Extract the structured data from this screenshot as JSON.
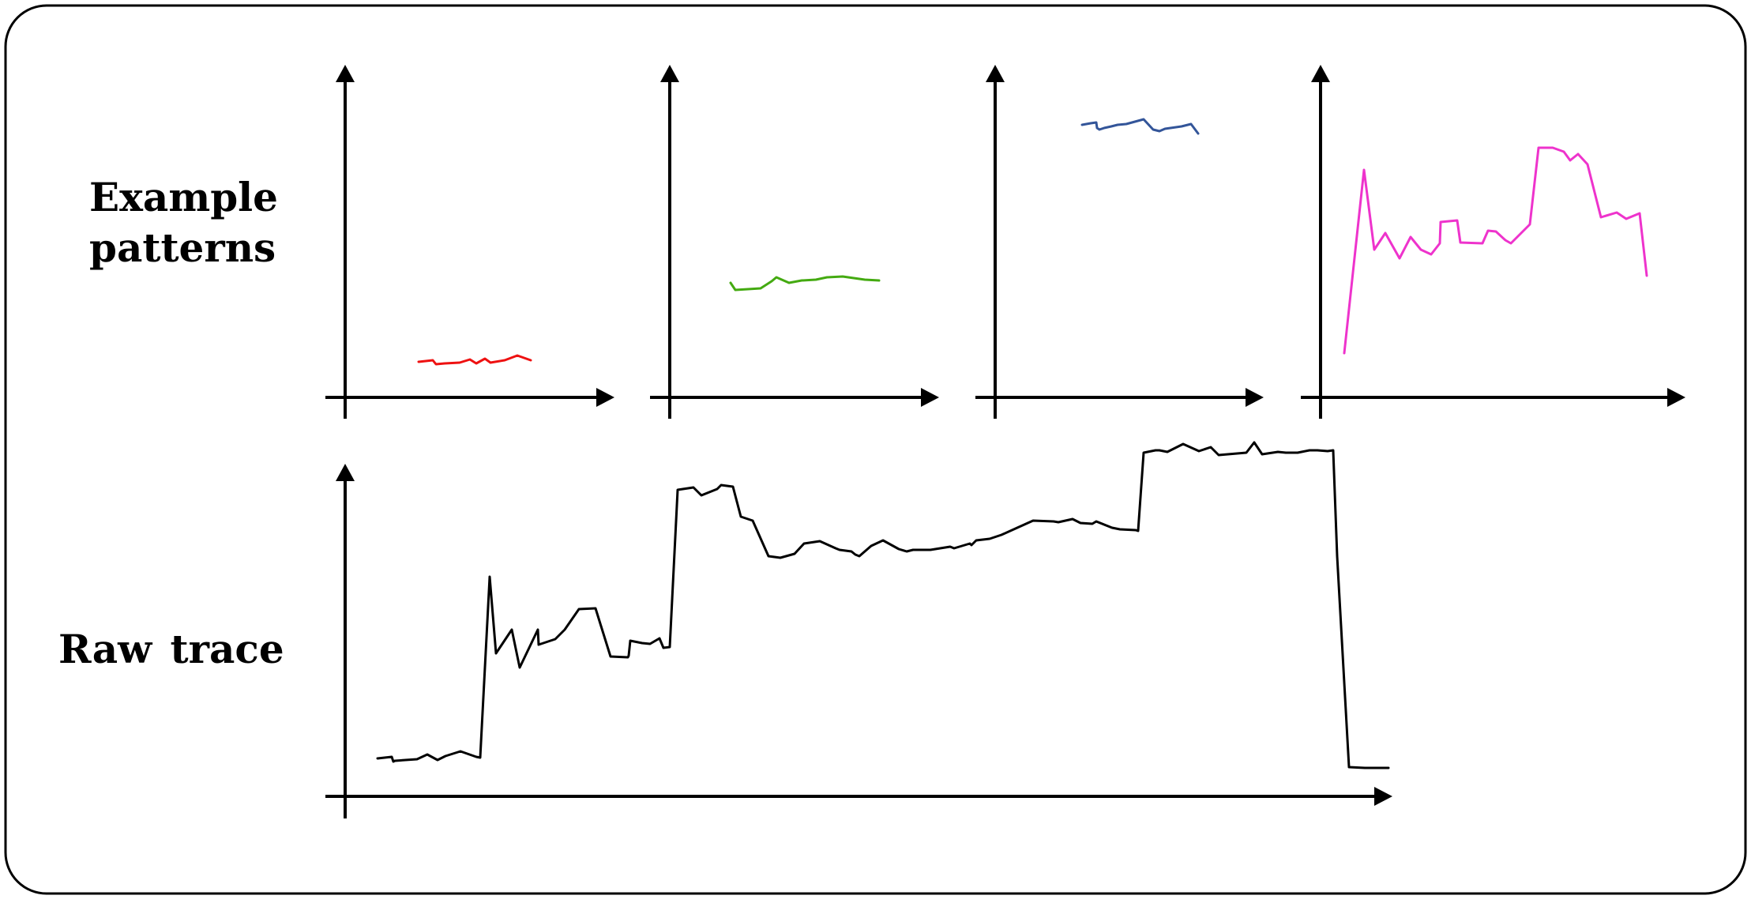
{
  "labels": {
    "example_patterns_line1": "Example",
    "example_patterns_line2": "patterns",
    "raw_trace": "Raw trace"
  },
  "colors": {
    "frame": "#000000",
    "axis": "#000000",
    "raw_trace": "#000000",
    "pattern_1": "#ee1111",
    "pattern_2": "#44aa11",
    "pattern_3": "#335599",
    "pattern_4": "#ee33cc"
  },
  "patterns": [
    {
      "name": "pattern-1",
      "color_key": "pattern_1",
      "y": [
        45,
        47,
        42,
        43,
        44,
        48,
        43,
        49,
        44,
        47,
        53,
        47
      ],
      "x": [
        0,
        18,
        22,
        33,
        52,
        65,
        73,
        84,
        91,
        109,
        125,
        142
      ]
    },
    {
      "name": "pattern-2",
      "color_key": "pattern_2",
      "y": [
        145,
        136,
        137,
        138,
        147,
        152,
        145,
        148,
        149,
        152,
        153,
        149,
        148
      ],
      "x": [
        0,
        6,
        22,
        38,
        52,
        58,
        74,
        90,
        108,
        122,
        142,
        170,
        188
      ]
    },
    {
      "name": "pattern-3",
      "color_key": "pattern_3",
      "y": [
        345,
        347,
        348,
        341,
        339,
        341,
        343,
        345,
        346,
        352,
        339,
        337,
        340,
        343,
        346,
        334
      ],
      "x": [
        0,
        11,
        18,
        19,
        22,
        28,
        37,
        45,
        56,
        78,
        90,
        98,
        105,
        126,
        138,
        147
      ]
    },
    {
      "name": "pattern-4",
      "color_key": "pattern_4",
      "y": [
        56,
        288,
        187,
        208,
        176,
        203,
        187,
        181,
        195,
        222,
        224,
        196,
        195,
        211,
        210,
        199,
        195,
        219,
        316,
        316,
        311,
        300,
        308,
        295,
        228,
        234,
        226,
        233,
        154
      ],
      "x": [
        0,
        25,
        38,
        52,
        70,
        84,
        97,
        110,
        121,
        122,
        143,
        147,
        175,
        182,
        192,
        204,
        211,
        235,
        246,
        264,
        278,
        286,
        296,
        308,
        325,
        345,
        357,
        374,
        383
      ]
    }
  ],
  "raw_trace": {
    "name": "raw-trace",
    "x": [
      0,
      18,
      20,
      22,
      50,
      63,
      76,
      86,
      105,
      125,
      130,
      142,
      150,
      170,
      180,
      203,
      204,
      225,
      237,
      255,
      276,
      295,
      317,
      318,
      320,
      335,
      345,
      357,
      362,
      370,
      380,
      400,
      405,
      410,
      430,
      435,
      450,
      460,
      475,
      495,
      510,
      528,
      540,
      560,
      580,
      585,
      600,
      605,
      610,
      625,
      640,
      660,
      670,
      678,
      683,
      700,
      725,
      730,
      750,
      752,
      758,
      775,
      790,
      810,
      830,
      856,
      862,
      880,
      890,
      905,
      910,
      930,
      940,
      960,
      963,
      970,
      985,
      990,
      1000,
      1020,
      1040,
      1055,
      1065,
      1100,
      1110,
      1120,
      1140,
      1150,
      1165,
      1180,
      1190,
      1203,
      1210,
      1215,
      1230,
      1250,
      1270,
      1280
    ],
    "y": [
      48,
      50,
      44,
      45,
      47,
      53,
      46,
      51,
      57,
      50,
      49,
      278,
      181,
      211,
      163,
      211,
      192,
      199,
      211,
      237,
      238,
      177,
      176,
      178,
      197,
      194,
      193,
      200,
      188,
      189,
      388,
      391,
      386,
      381,
      389,
      394,
      392,
      354,
      349,
      304,
      302,
      307,
      320,
      323,
      314,
      312,
      310,
      306,
      304,
      317,
      324,
      313,
      310,
      312,
      312,
      312,
      316,
      314,
      320,
      318,
      324,
      326,
      331,
      340,
      349,
      348,
      347,
      351,
      346,
      345,
      348,
      340,
      338,
      337,
      336,
      435,
      438,
      438,
      436,
      446,
      437,
      442,
      432,
      435,
      448,
      433,
      436,
      435,
      435,
      438,
      438,
      437,
      438,
      304,
      37,
      36,
      36,
      36
    ]
  }
}
